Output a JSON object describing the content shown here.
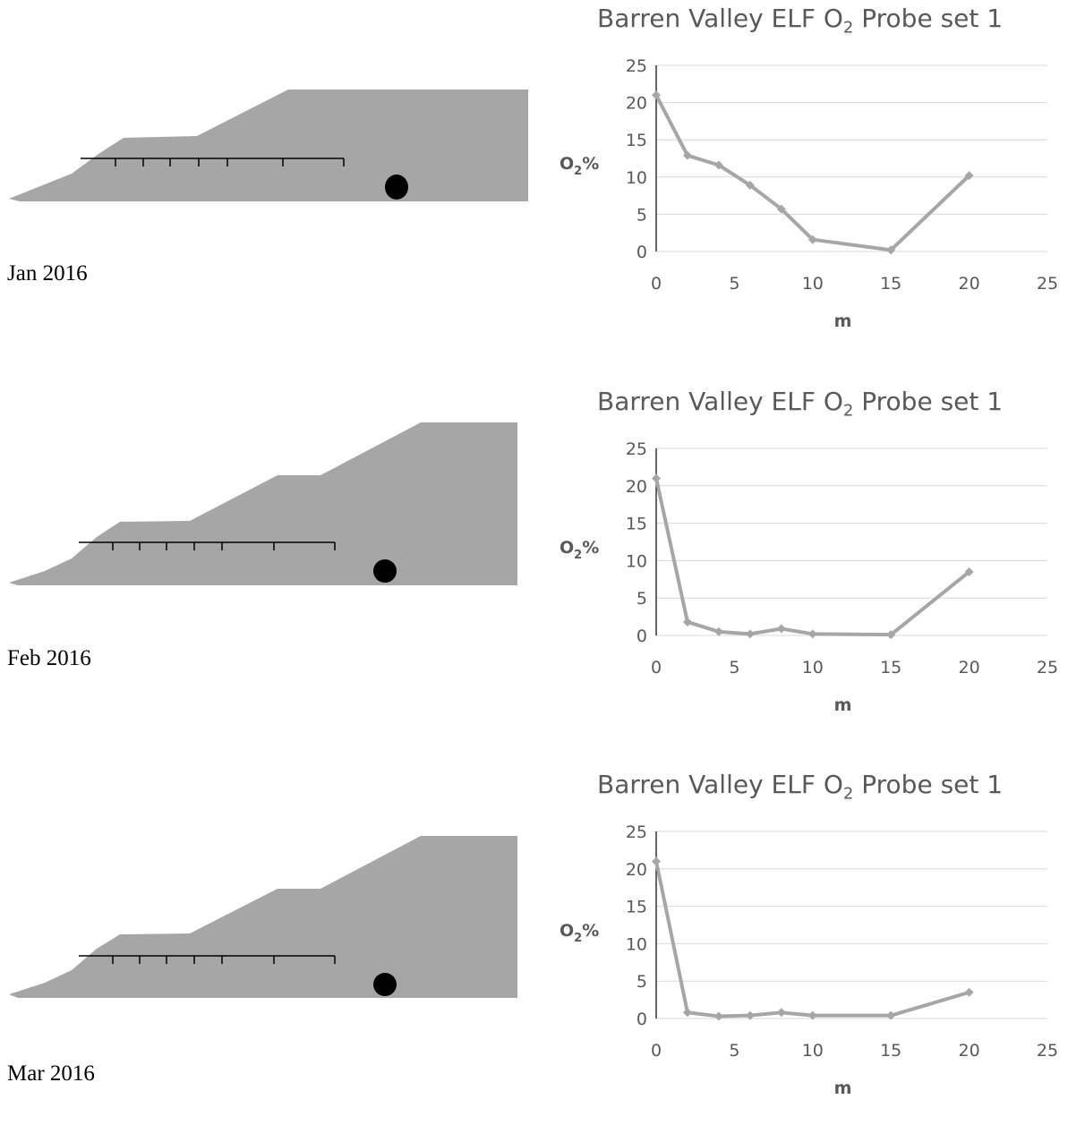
{
  "panels": [
    {
      "date": "Jan 2016"
    },
    {
      "date": "Feb 2016"
    },
    {
      "date": "Mar 2016"
    }
  ],
  "colors": {
    "section_fill": "#a6a6a6",
    "line": "#a6a6a6",
    "grid": "#d9d9d9",
    "text": "#595959"
  },
  "chart_data": [
    {
      "type": "line",
      "title_main": "Barren Valley ELF O",
      "title_sub": "2",
      "title_tail": " Probe set 1",
      "xlabel": "m",
      "ylabel_main": "O",
      "ylabel_sub": "2",
      "ylabel_tail": "%",
      "xlim": [
        0,
        25
      ],
      "ylim": [
        0,
        25
      ],
      "xticks": [
        "0",
        "5",
        "10",
        "15",
        "20",
        "25"
      ],
      "yticks": [
        "0",
        "5",
        "10",
        "15",
        "20",
        "25"
      ],
      "x": [
        0,
        2,
        4,
        6,
        8,
        10,
        15,
        20
      ],
      "y": [
        21,
        12.9,
        11.6,
        8.9,
        5.7,
        1.6,
        0.2,
        10.2
      ]
    },
    {
      "type": "line",
      "title_main": "Barren Valley ELF O",
      "title_sub": "2",
      "title_tail": " Probe set 1",
      "xlabel": "m",
      "ylabel_main": "O",
      "ylabel_sub": "2",
      "ylabel_tail": "%",
      "xlim": [
        0,
        25
      ],
      "ylim": [
        0,
        25
      ],
      "xticks": [
        "0",
        "5",
        "10",
        "15",
        "20",
        "25"
      ],
      "yticks": [
        "0",
        "5",
        "10",
        "15",
        "20",
        "25"
      ],
      "x": [
        0,
        2,
        4,
        6,
        8,
        10,
        15,
        20
      ],
      "y": [
        21,
        1.8,
        0.5,
        0.2,
        0.9,
        0.2,
        0.1,
        8.5
      ]
    },
    {
      "type": "line",
      "title_main": "Barren Valley ELF O",
      "title_sub": "2",
      "title_tail": " Probe set 1",
      "xlabel": "m",
      "ylabel_main": "O",
      "ylabel_sub": "2",
      "ylabel_tail": "%",
      "xlim": [
        0,
        25
      ],
      "ylim": [
        0,
        25
      ],
      "xticks": [
        "0",
        "5",
        "10",
        "15",
        "20",
        "25"
      ],
      "yticks": [
        "0",
        "5",
        "10",
        "15",
        "20",
        "25"
      ],
      "x": [
        0,
        2,
        4,
        6,
        8,
        10,
        15,
        20
      ],
      "y": [
        21,
        0.8,
        0.3,
        0.4,
        0.8,
        0.4,
        0.4,
        3.5
      ]
    }
  ]
}
